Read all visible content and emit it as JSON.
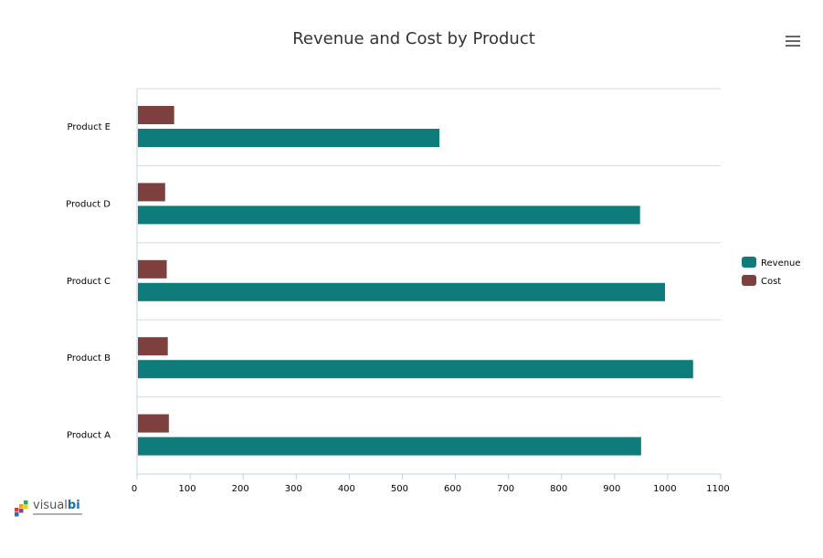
{
  "chart_data": {
    "type": "bar",
    "orientation": "horizontal",
    "title": "Revenue and Cost by Product",
    "categories": [
      "Product A",
      "Product B",
      "Product C",
      "Product D",
      "Product E"
    ],
    "series": [
      {
        "name": "Revenue",
        "color": "#0e7c7b",
        "values": [
          950,
          1048,
          995,
          948,
          570
        ]
      },
      {
        "name": "Cost",
        "color": "#7e3f3f",
        "values": [
          60,
          58,
          56,
          53,
          70
        ]
      }
    ],
    "xlim": [
      0,
      1100
    ],
    "x_ticks": [
      0,
      100,
      200,
      300,
      400,
      500,
      600,
      700,
      800,
      900,
      1000,
      1100
    ],
    "xlabel": "",
    "ylabel": "",
    "grid": true,
    "legend_position": "right"
  },
  "logo": {
    "name_part1": "visual",
    "name_part2": "bi",
    "cube_colors": [
      "#e23b3b",
      "#f2a21b",
      "#3aa655",
      "#2a6fb5",
      "#8a3fa0",
      "#e8d21d"
    ]
  },
  "toolbar": {
    "menu_icon": "hamburger-menu-icon"
  }
}
